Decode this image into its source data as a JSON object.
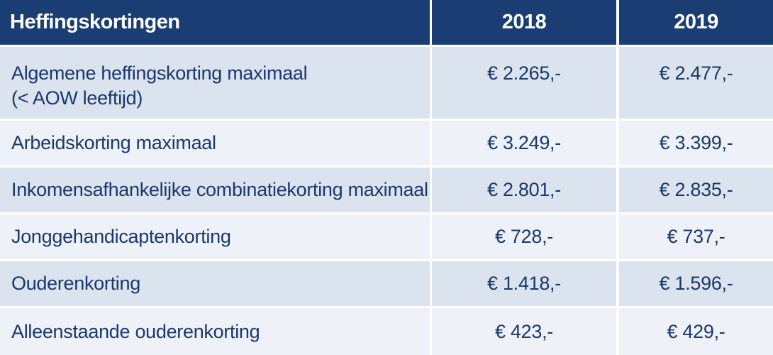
{
  "table": {
    "headers": [
      "Heffingskortingen",
      "2018",
      "2019"
    ],
    "rows": [
      {
        "label": "Algemene heffingskorting maximaal",
        "label_line2": "(< AOW leeftijd)",
        "v2018": "€ 2.265,-",
        "v2019": "€ 2.477,-"
      },
      {
        "label": "Arbeidskorting maximaal",
        "v2018": "€ 3.249,-",
        "v2019": "€ 3.399,-"
      },
      {
        "label": "Inkomensafhankelijke combinatiekorting maximaal",
        "v2018": "€ 2.801,-",
        "v2019": "€ 2.835,-"
      },
      {
        "label": "Jonggehandicaptenkorting",
        "v2018": "€ 728,-",
        "v2019": "€ 737,-"
      },
      {
        "label": "Ouderenkorting",
        "v2018": "€ 1.418,-",
        "v2019": "€ 1.596,-"
      },
      {
        "label": "Alleenstaande ouderenkorting",
        "v2018": "€ 423,-",
        "v2019": "€ 429,-"
      }
    ]
  },
  "colors": {
    "header_bg": "#1a3d73",
    "header_text": "#ffffff",
    "body_text": "#1a3869",
    "row_odd": "#dbe3ee",
    "row_even": "#eef2f8"
  }
}
